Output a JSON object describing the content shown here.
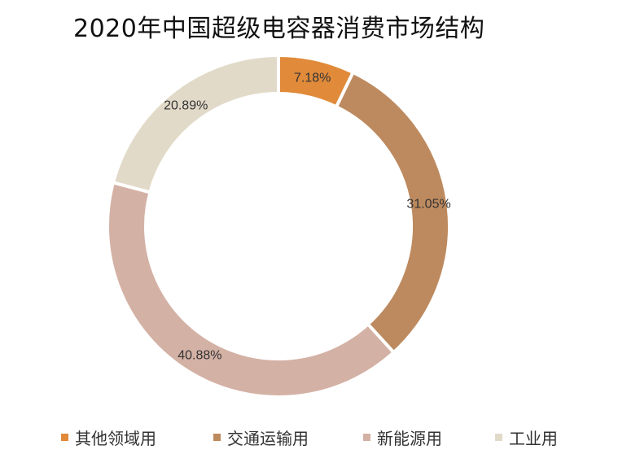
{
  "chart_data": {
    "type": "pie",
    "style": "donut",
    "title": "2020年中国超级电容器消费市场结构",
    "categories": [
      "其他领域用",
      "交通运输用",
      "新能源用",
      "工业用"
    ],
    "values": [
      7.18,
      31.05,
      40.88,
      20.89
    ],
    "value_labels": [
      "7.18%",
      "31.05%",
      "40.88%",
      "20.89%"
    ],
    "unit": "%",
    "colors": [
      "#e08a3a",
      "#bd8a5f",
      "#d4b1a5",
      "#e2dac9"
    ],
    "legend_position": "bottom",
    "start_angle_deg": 0,
    "direction": "clockwise"
  }
}
